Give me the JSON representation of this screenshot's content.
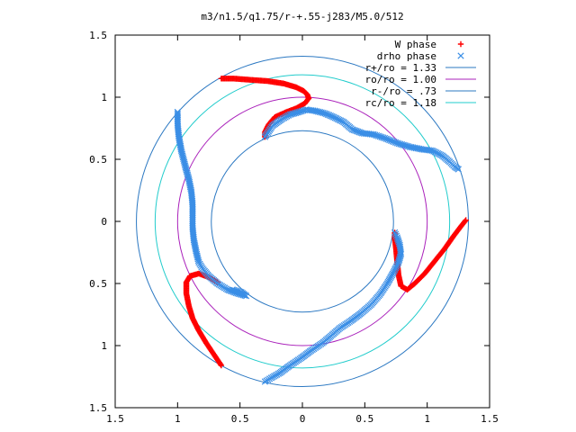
{
  "chart_data": {
    "type": "scatter",
    "title": "m3/n1.5/q1.75/r-+.55-j283/M5.0/512",
    "xlim": [
      -1.5,
      1.5
    ],
    "ylim": [
      -1.5,
      1.5
    ],
    "x_ticks": [
      -1.5,
      -1,
      -0.5,
      0,
      0.5,
      1,
      1.5
    ],
    "x_tick_labels": [
      "1.5",
      "1",
      "0.5",
      "0",
      "0.5",
      "1",
      "1.5"
    ],
    "y_ticks": [
      -1.5,
      -1,
      -0.5,
      0,
      0.5,
      1,
      1.5
    ],
    "y_tick_labels": [
      "1.5",
      "1",
      "0.5",
      "0",
      "0.5",
      "1",
      "1.5"
    ],
    "grid": false,
    "legend_position": "top-right",
    "legend": [
      {
        "label": "W phase",
        "kind": "point",
        "marker": "plus",
        "color": "#ff0000"
      },
      {
        "label": "drho phase",
        "kind": "point",
        "marker": "cross",
        "color": "#3a8ee6"
      },
      {
        "label": "r+/ro = 1.33",
        "kind": "line",
        "color": "#2b78c2"
      },
      {
        "label": "ro/ro = 1.00",
        "kind": "line",
        "color": "#aa22bb"
      },
      {
        "label": "r-/ro = .73",
        "kind": "line",
        "color": "#2b78c2"
      },
      {
        "label": "rc/ro = 1.18",
        "kind": "line",
        "color": "#22cccc"
      }
    ],
    "circles": [
      {
        "name": "r+/ro",
        "r": 1.33,
        "color": "#2b78c2"
      },
      {
        "name": "ro/ro",
        "r": 1.0,
        "color": "#aa22bb"
      },
      {
        "name": "r-/ro",
        "r": 0.73,
        "color": "#2b78c2"
      },
      {
        "name": "rc/ro",
        "r": 1.18,
        "color": "#22cccc"
      }
    ],
    "series": [
      {
        "name": "W phase",
        "marker": "plus",
        "color": "#ff0000",
        "segments": [
          [
            [
              0.05,
              0.99
            ],
            [
              0.04,
              1.02
            ],
            [
              0.01,
              1.05
            ],
            [
              -0.05,
              1.08
            ],
            [
              -0.15,
              1.11
            ],
            [
              -0.28,
              1.13
            ],
            [
              -0.42,
              1.14
            ],
            [
              -0.55,
              1.15
            ],
            [
              -0.65,
              1.15
            ]
          ],
          [
            [
              0.05,
              0.99
            ],
            [
              0.02,
              0.95
            ],
            [
              -0.05,
              0.91
            ],
            [
              -0.13,
              0.88
            ],
            [
              -0.22,
              0.84
            ],
            [
              -0.27,
              0.78
            ],
            [
              -0.3,
              0.72
            ],
            [
              -0.3,
              0.68
            ]
          ],
          [
            [
              1.31,
              0.01
            ],
            [
              1.27,
              -0.04
            ],
            [
              1.21,
              -0.12
            ],
            [
              1.14,
              -0.22
            ],
            [
              1.06,
              -0.32
            ],
            [
              0.98,
              -0.42
            ],
            [
              0.9,
              -0.5
            ],
            [
              0.84,
              -0.55
            ],
            [
              0.79,
              -0.52
            ],
            [
              0.77,
              -0.43
            ],
            [
              0.76,
              -0.33
            ],
            [
              0.75,
              -0.22
            ],
            [
              0.74,
              -0.13
            ],
            [
              0.74,
              -0.09
            ]
          ],
          [
            [
              -0.65,
              -1.16
            ],
            [
              -0.71,
              -1.07
            ],
            [
              -0.77,
              -0.98
            ],
            [
              -0.83,
              -0.88
            ],
            [
              -0.88,
              -0.78
            ],
            [
              -0.91,
              -0.68
            ],
            [
              -0.93,
              -0.58
            ],
            [
              -0.93,
              -0.49
            ],
            [
              -0.9,
              -0.44
            ],
            [
              -0.83,
              -0.42
            ],
            [
              -0.75,
              -0.45
            ],
            [
              -0.68,
              -0.49
            ]
          ]
        ]
      },
      {
        "name": "drho phase",
        "marker": "cross",
        "color": "#3a8ee6",
        "segments": [
          [
            [
              -0.3,
              0.68
            ],
            [
              -0.24,
              0.77
            ],
            [
              -0.17,
              0.82
            ],
            [
              -0.1,
              0.86
            ],
            [
              -0.03,
              0.88
            ],
            [
              0.03,
              0.9
            ],
            [
              0.1,
              0.89
            ],
            [
              0.18,
              0.87
            ],
            [
              0.25,
              0.84
            ],
            [
              0.33,
              0.8
            ],
            [
              0.4,
              0.74
            ],
            [
              0.48,
              0.71
            ],
            [
              0.57,
              0.7
            ],
            [
              0.66,
              0.67
            ],
            [
              0.76,
              0.63
            ],
            [
              0.86,
              0.6
            ],
            [
              0.96,
              0.58
            ],
            [
              1.04,
              0.57
            ],
            [
              1.12,
              0.53
            ],
            [
              1.18,
              0.48
            ],
            [
              1.22,
              0.44
            ],
            [
              1.25,
              0.42
            ]
          ],
          [
            [
              -1.0,
              0.88
            ],
            [
              -1.0,
              0.78
            ],
            [
              -0.99,
              0.68
            ],
            [
              -0.97,
              0.57
            ],
            [
              -0.94,
              0.45
            ],
            [
              -0.91,
              0.34
            ],
            [
              -0.89,
              0.24
            ],
            [
              -0.88,
              0.14
            ],
            [
              -0.88,
              0.04
            ],
            [
              -0.88,
              -0.05
            ],
            [
              -0.87,
              -0.15
            ],
            [
              -0.85,
              -0.25
            ],
            [
              -0.83,
              -0.33
            ],
            [
              -0.8,
              -0.38
            ],
            [
              -0.75,
              -0.44
            ],
            [
              -0.68,
              -0.5
            ],
            [
              -0.6,
              -0.55
            ],
            [
              -0.52,
              -0.58
            ],
            [
              -0.45,
              -0.6
            ],
            [
              -0.49,
              -0.57
            ],
            [
              -0.56,
              -0.55
            ]
          ],
          [
            [
              0.74,
              -0.09
            ],
            [
              0.76,
              -0.13
            ],
            [
              0.78,
              -0.19
            ],
            [
              0.79,
              -0.26
            ],
            [
              0.77,
              -0.33
            ],
            [
              0.73,
              -0.41
            ],
            [
              0.68,
              -0.5
            ],
            [
              0.62,
              -0.59
            ],
            [
              0.55,
              -0.67
            ],
            [
              0.47,
              -0.74
            ],
            [
              0.39,
              -0.8
            ],
            [
              0.3,
              -0.86
            ],
            [
              0.22,
              -0.93
            ],
            [
              0.16,
              -0.98
            ],
            [
              0.07,
              -1.04
            ],
            [
              -0.01,
              -1.1
            ],
            [
              -0.1,
              -1.16
            ],
            [
              -0.18,
              -1.22
            ],
            [
              -0.25,
              -1.26
            ],
            [
              -0.3,
              -1.29
            ]
          ]
        ]
      }
    ]
  }
}
